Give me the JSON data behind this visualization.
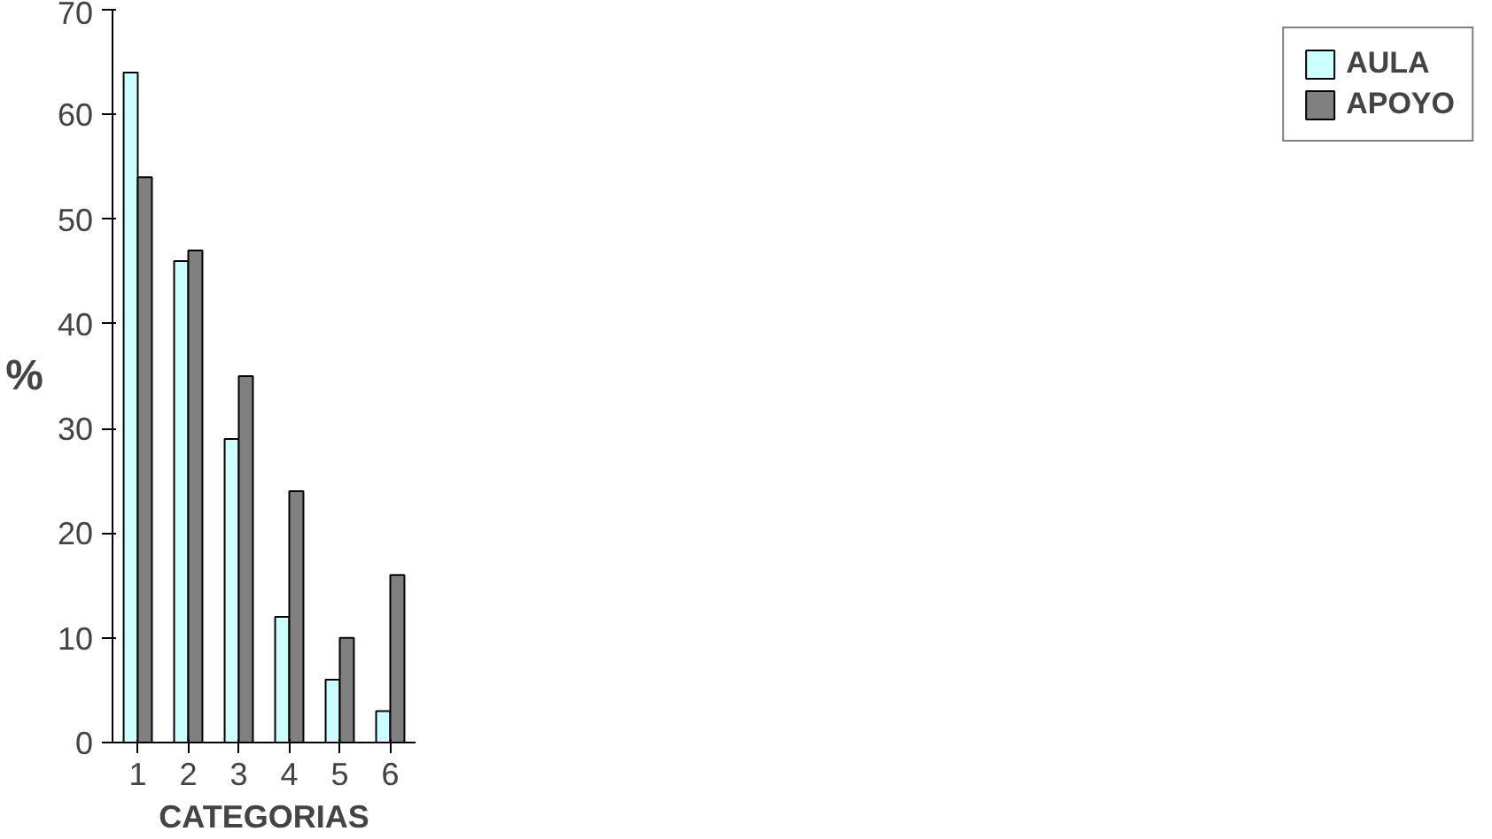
{
  "chart_data": {
    "type": "bar",
    "xlabel": "CATEGORIAS",
    "ylabel": "%",
    "categories": [
      "1",
      "2",
      "3",
      "4",
      "5",
      "6"
    ],
    "series": [
      {
        "name": "AULA",
        "color": "#ccffff",
        "values": [
          64,
          46,
          29,
          12,
          6,
          3
        ]
      },
      {
        "name": "APOYO",
        "color": "#808080",
        "values": [
          54,
          47,
          35,
          24,
          10,
          16
        ]
      }
    ],
    "ylim": [
      0,
      70
    ],
    "yticks": [
      0,
      10,
      20,
      30,
      40,
      50,
      60,
      70
    ],
    "grid": false,
    "legend": "right"
  }
}
